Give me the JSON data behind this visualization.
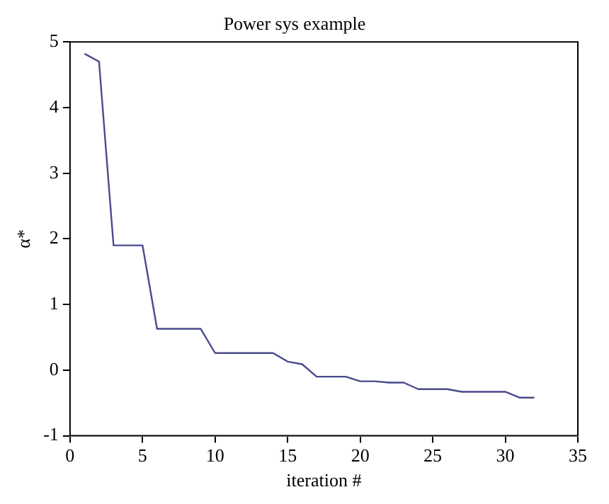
{
  "chart_data": {
    "type": "line",
    "title": "Power sys example",
    "xlabel": "iteration #",
    "ylabel": "α*",
    "x": [
      1,
      2,
      3,
      4,
      5,
      6,
      7,
      8,
      9,
      10,
      11,
      12,
      13,
      14,
      15,
      16,
      17,
      18,
      19,
      20,
      21,
      22,
      23,
      24,
      25,
      26,
      27,
      28,
      29,
      30,
      31,
      32
    ],
    "series": [
      {
        "color": "#4a4a8c",
        "values": [
          4.82,
          4.7,
          1.9,
          1.9,
          1.9,
          0.63,
          0.63,
          0.63,
          0.63,
          0.26,
          0.26,
          0.26,
          0.26,
          0.26,
          0.13,
          0.09,
          -0.1,
          -0.1,
          -0.1,
          -0.17,
          -0.17,
          -0.19,
          -0.19,
          -0.29,
          -0.29,
          -0.29,
          -0.33,
          -0.33,
          -0.33,
          -0.33,
          -0.42,
          -0.42
        ]
      }
    ],
    "xlim": [
      0,
      35
    ],
    "xticks": [
      0,
      5,
      10,
      15,
      20,
      25,
      30,
      35
    ],
    "ylim": [
      -1,
      5
    ],
    "yticks": [
      -1,
      0,
      1,
      2,
      3,
      4,
      5
    ],
    "grid": false,
    "legend": false,
    "marker": "none",
    "line_style": "solid"
  }
}
